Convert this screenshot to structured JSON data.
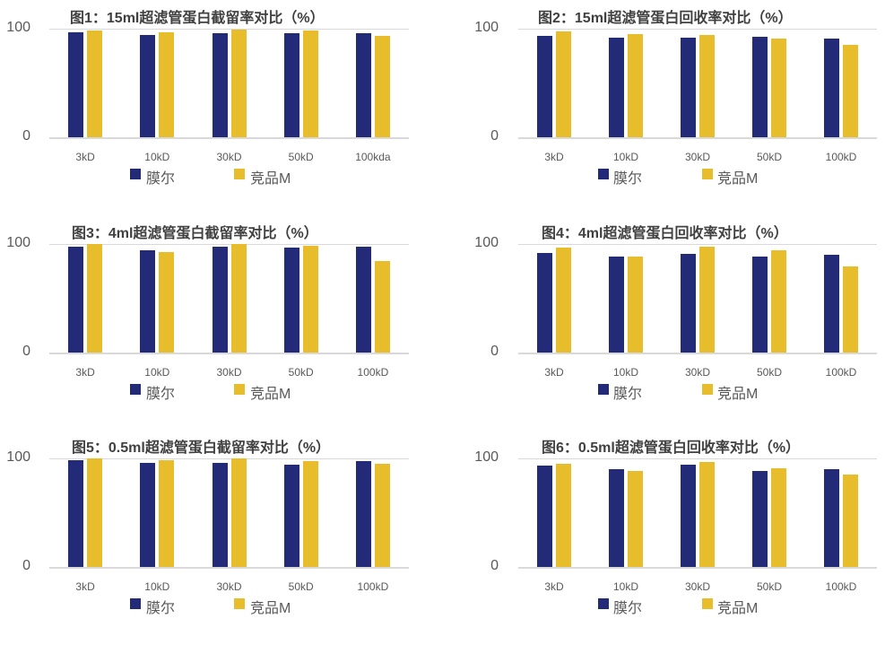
{
  "colors": {
    "series_a": "#232a78",
    "series_b": "#e8bd2b",
    "grid": "#d9d9d9",
    "text": "#595959",
    "title": "#404040"
  },
  "legend": {
    "series_a": "膜尔",
    "series_b": "竞品M"
  },
  "y_ticks": {
    "top": "100",
    "bottom": "0"
  },
  "chart_data": [
    {
      "type": "bar",
      "title": "图1：15ml超滤管蛋白截留率对比（%）",
      "categories": [
        "3kD",
        "10kD",
        "30kD",
        "50kD",
        "100kda"
      ],
      "series": [
        {
          "name": "膜尔",
          "values": [
            97,
            94,
            96,
            96,
            96
          ]
        },
        {
          "name": "竞品M",
          "values": [
            98.5,
            96.5,
            99.5,
            98,
            93
          ]
        }
      ],
      "xlabel": "",
      "ylabel": "",
      "ylim": [
        0,
        100
      ],
      "yticks": [
        0,
        100
      ],
      "grid": true,
      "legend_position": "bottom"
    },
    {
      "type": "bar",
      "title": "图2：15ml超滤管蛋白回收率对比（%）",
      "categories": [
        "3kD",
        "10kD",
        "30kD",
        "50kD",
        "100kD"
      ],
      "series": [
        {
          "name": "膜尔",
          "values": [
            93.4,
            92,
            91.7,
            92.5,
            91
          ]
        },
        {
          "name": "竞品M",
          "values": [
            97.5,
            95,
            94.5,
            91,
            85
          ]
        }
      ],
      "xlabel": "",
      "ylabel": "",
      "ylim": [
        0,
        100
      ],
      "yticks": [
        0,
        100
      ],
      "grid": true,
      "legend_position": "bottom"
    },
    {
      "type": "bar",
      "title": "图3：4ml超滤管蛋白截留率对比（%）",
      "categories": [
        "3kD",
        "10kD",
        "30kD",
        "50kD",
        "100kD"
      ],
      "series": [
        {
          "name": "膜尔",
          "values": [
            97.8,
            94.2,
            97.8,
            97,
            97.8
          ]
        },
        {
          "name": "竞品M",
          "values": [
            100,
            92.3,
            99.7,
            98.6,
            84.3
          ]
        }
      ],
      "xlabel": "",
      "ylabel": "",
      "ylim": [
        0,
        100
      ],
      "yticks": [
        0,
        100
      ],
      "grid": true,
      "legend_position": "bottom"
    },
    {
      "type": "bar",
      "title": "图4：4ml超滤管蛋白回收率对比（%）",
      "categories": [
        "3kD",
        "10kD",
        "30kD",
        "50kD",
        "100kD"
      ],
      "series": [
        {
          "name": "膜尔",
          "values": [
            91.8,
            88.2,
            90.9,
            88.5,
            90.4
          ]
        },
        {
          "name": "竞品M",
          "values": [
            96.4,
            88.7,
            97.3,
            94.5,
            79.1
          ]
        }
      ],
      "xlabel": "",
      "ylabel": "",
      "ylim": [
        0,
        100
      ],
      "yticks": [
        0,
        100
      ],
      "grid": true,
      "legend_position": "bottom"
    },
    {
      "type": "bar",
      "title": "图5：0.5ml超滤管蛋白截留率对比（%）",
      "categories": [
        "3kD",
        "10kD",
        "30kD",
        "50kD",
        "100kD"
      ],
      "series": [
        {
          "name": "膜尔",
          "values": [
            98.1,
            96.2,
            95.9,
            94.2,
            97.3
          ]
        },
        {
          "name": "竞品M",
          "values": [
            100,
            98.4,
            100,
            97.8,
            95.1
          ]
        }
      ],
      "xlabel": "",
      "ylabel": "",
      "ylim": [
        0,
        100
      ],
      "yticks": [
        0,
        100
      ],
      "grid": true,
      "legend_position": "bottom"
    },
    {
      "type": "bar",
      "title": "图6：0.5ml超滤管蛋白回收率对比（%）",
      "categories": [
        "3kD",
        "10kD",
        "30kD",
        "50kD",
        "100kD"
      ],
      "series": [
        {
          "name": "膜尔",
          "values": [
            93.7,
            89.9,
            94.2,
            88.5,
            89.9
          ]
        },
        {
          "name": "竞品M",
          "values": [
            95.1,
            88.8,
            96.7,
            91.2,
            85.2
          ]
        }
      ],
      "xlabel": "",
      "ylabel": "",
      "ylim": [
        0,
        100
      ],
      "yticks": [
        0,
        100
      ],
      "grid": true,
      "legend_position": "bottom"
    }
  ]
}
